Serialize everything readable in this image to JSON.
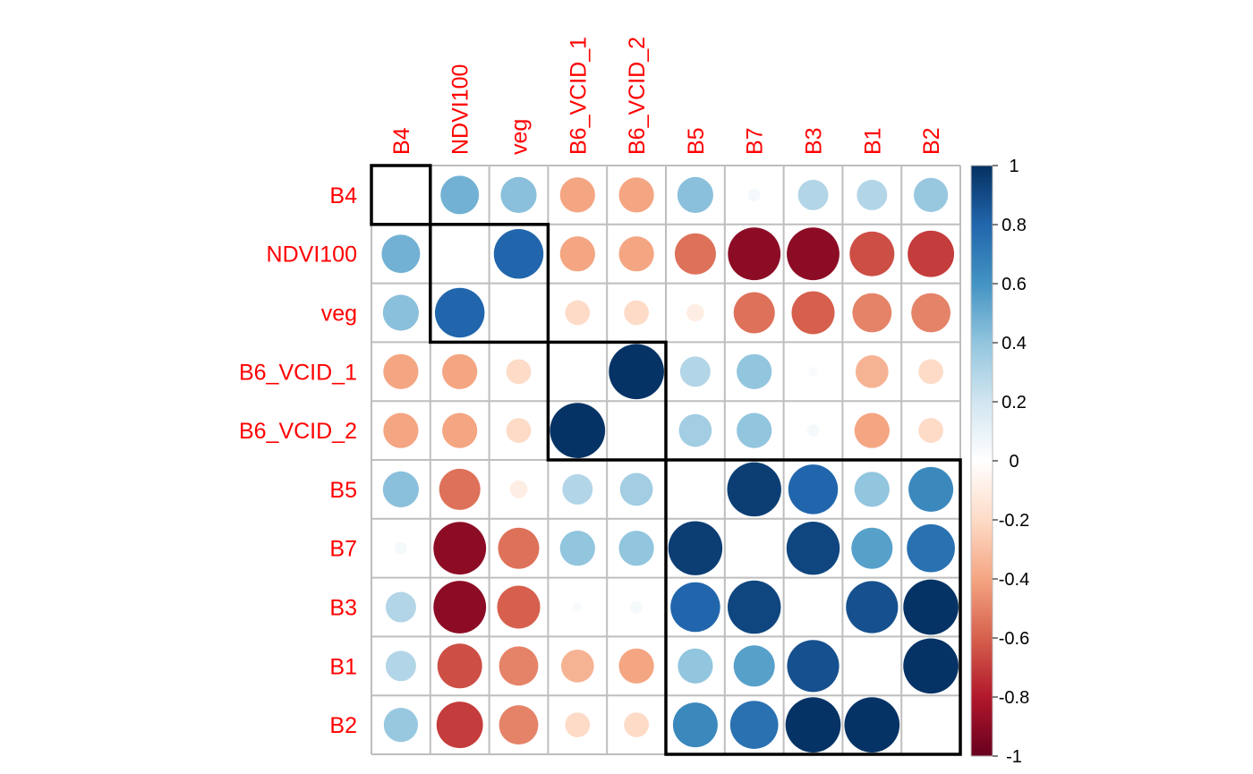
{
  "chart_data": {
    "type": "heatmap",
    "style": "corrplot-circle",
    "variables": [
      "B4",
      "NDVI100",
      "veg",
      "B6_VCID_1",
      "B6_VCID_2",
      "B5",
      "B7",
      "B3",
      "B1",
      "B2"
    ],
    "correlation_matrix": [
      [
        1.0,
        0.48,
        0.42,
        -0.4,
        -0.4,
        0.42,
        0.05,
        0.3,
        0.3,
        0.38
      ],
      [
        0.48,
        1.0,
        0.8,
        -0.4,
        -0.4,
        -0.55,
        -0.9,
        -0.9,
        -0.65,
        -0.7
      ],
      [
        0.42,
        0.8,
        1.0,
        -0.2,
        -0.2,
        -0.1,
        -0.55,
        -0.6,
        -0.5,
        -0.5
      ],
      [
        -0.4,
        -0.4,
        -0.2,
        1.0,
        0.99,
        0.3,
        0.4,
        0.03,
        -0.35,
        -0.2
      ],
      [
        -0.4,
        -0.4,
        -0.2,
        0.99,
        1.0,
        0.35,
        0.4,
        0.05,
        -0.4,
        -0.2
      ],
      [
        0.42,
        -0.55,
        -0.1,
        0.3,
        0.35,
        1.0,
        0.95,
        0.8,
        0.4,
        0.65
      ],
      [
        0.05,
        -0.9,
        -0.55,
        0.4,
        0.4,
        0.95,
        1.0,
        0.92,
        0.55,
        0.75
      ],
      [
        0.3,
        -0.9,
        -0.6,
        0.03,
        0.05,
        0.8,
        0.92,
        1.0,
        0.88,
        0.99
      ],
      [
        0.3,
        -0.65,
        -0.5,
        -0.35,
        -0.4,
        0.4,
        0.55,
        0.88,
        1.0,
        0.99
      ],
      [
        0.38,
        -0.7,
        -0.5,
        -0.2,
        -0.2,
        0.65,
        0.75,
        0.99,
        0.99,
        1.0
      ]
    ],
    "diagonal_shown": false,
    "clusters": [
      [
        "B4"
      ],
      [
        "NDVI100",
        "veg"
      ],
      [
        "B6_VCID_1",
        "B6_VCID_2"
      ],
      [
        "B5",
        "B7",
        "B3",
        "B1",
        "B2"
      ]
    ],
    "colorbar": {
      "range": [
        -1,
        1
      ],
      "tick_labels": [
        "1",
        "0.8",
        "0.6",
        "0.4",
        "0.2",
        "0",
        "-0.2",
        "-0.4",
        "-0.6",
        "-0.8",
        "-1"
      ]
    },
    "colors": {
      "label": "#ff0000",
      "grid": "#bebebe",
      "cluster_box": "#000000",
      "scale": [
        "#67001f",
        "#b2182b",
        "#d6604d",
        "#f4a582",
        "#fddbc7",
        "#ffffff",
        "#d1e5f0",
        "#92c5de",
        "#4393c3",
        "#2166ac",
        "#053061"
      ]
    }
  }
}
